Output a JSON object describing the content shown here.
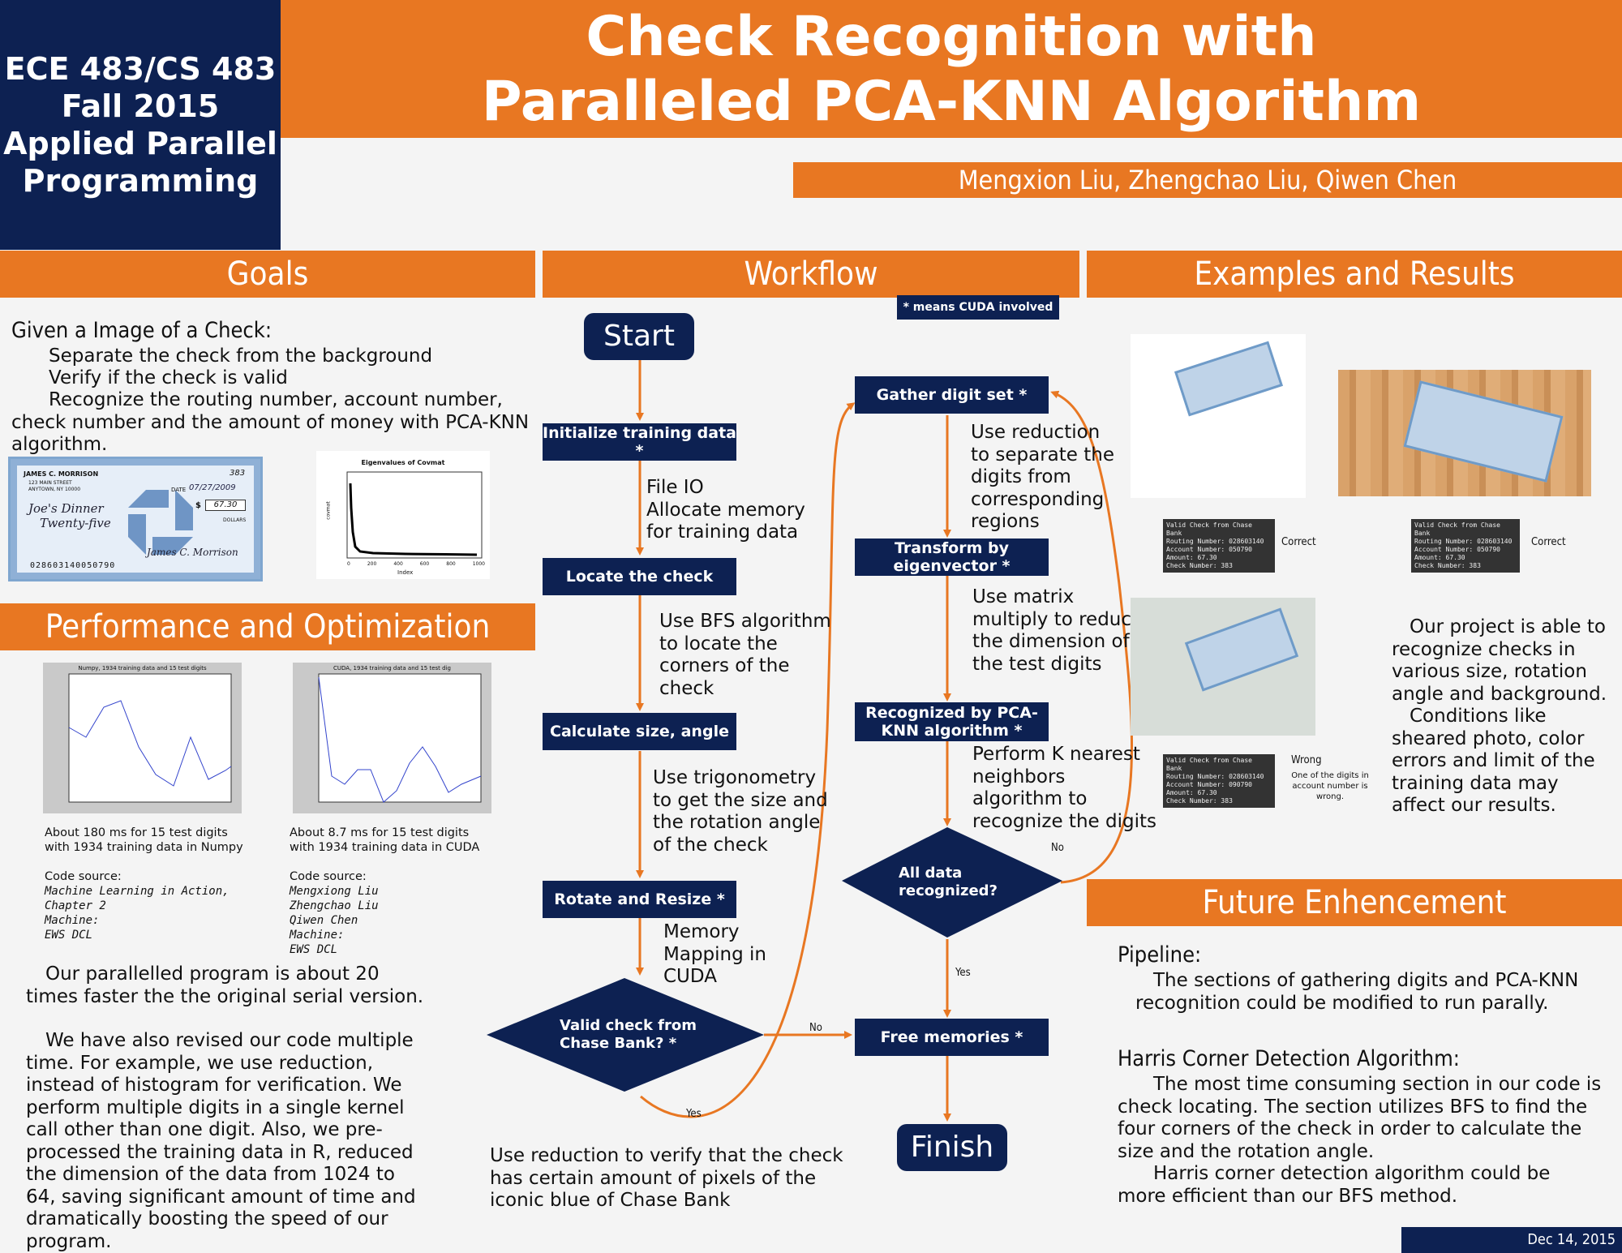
{
  "header": {
    "course": [
      "ECE 483/CS 483",
      "Fall 2015",
      "Applied Parallel",
      "Programming"
    ],
    "title_line1": "Check Recognition with",
    "title_line2": "Paralleled PCA-KNN Algorithm",
    "authors": "Mengxion Liu, Zhengchao Liu, Qiwen Chen"
  },
  "goals": {
    "heading": "Goals",
    "intro": "Given a Image of a Check:",
    "items": [
      "Separate the check from the background",
      "Verify if the check is valid",
      "Recognize the routing number, account number, check number and the amount of money with PCA-KNN algorithm."
    ],
    "check": {
      "name": "JAMES C. MORRISON",
      "address1": "123 MAIN STREET",
      "address2": "ANYTOWN, NY 10000",
      "number": "383",
      "date_label": "DATE",
      "date": "07/27/2009",
      "payee": "Joe's Dinner",
      "amount_words": "Twenty-five",
      "amount": "67.30",
      "dollars": "DOLLARS",
      "signature": "James C. Morrison",
      "micr": "028603140050790"
    },
    "eigen_plot": {
      "title": "Eigenvalues of Covmat",
      "ylabel": "covmat",
      "xlabel": "Index",
      "xticks": [
        "0",
        "200",
        "400",
        "600",
        "800",
        "1000"
      ]
    }
  },
  "performance": {
    "heading": "Performance and Optimization",
    "numpy_plot_title": "Numpy, 1934 training data and 15 test digits",
    "cuda_plot_title": "CUDA, 1934 training data and 15 test dig",
    "numpy_caption": "About 180 ms for 15 test digits with 1934 training data in Numpy",
    "cuda_caption": "About 8.7 ms for 15 test digits with 1934 training data in CUDA",
    "code_source_label": "Code source:",
    "numpy_source": [
      "Machine Learning in Action,",
      "Chapter 2",
      "Machine:",
      "EWS DCL"
    ],
    "cuda_source": [
      "Mengxiong Liu",
      "Zhengchao Liu",
      "Qiwen Chen",
      "Machine:",
      "EWS DCL"
    ],
    "para1": "Our parallelled program is about 20 times faster the the original serial version.",
    "para2": "We have also revised our code multiple time. For example, we use reduction, instead of histogram for verification. We perform multiple digits in a single kernel call other than one digit. Also, we pre-processed the training data in R, reduced the dimension of the data from 1024 to 64, saving significant amount of time and dramatically boosting the speed of our program."
  },
  "workflow": {
    "heading": "Workflow",
    "cuda_note": "* means CUDA involved",
    "start": "Start",
    "finish": "Finish",
    "steps": {
      "init": "Initialize training data *",
      "locate": "Locate the check",
      "calc": "Calculate size, angle",
      "rotate": "Rotate and Resize *",
      "valid": "Valid check from Chase Bank? *",
      "gather": "Gather digit set *",
      "transform": "Transform by eigenvector *",
      "recognized": "Recognized by PCA-KNN algorithm *",
      "alldata": "All data recognized?",
      "free": "Free memories *"
    },
    "notes": {
      "init": "File IO\nAllocate memory\nfor training data",
      "locate": "Use BFS algorithm\nto locate the\ncorners of the\ncheck",
      "calc": "Use trigonometry\nto get the size and\nthe rotation angle\nof the check",
      "rotate": "Memory\nMapping in\nCUDA",
      "gather": "Use reduction\nto separate the\ndigits from\ncorresponding\nregions",
      "transform": "Use matrix\nmultiply to reduce\nthe dimension of\nthe test digits",
      "recognized": "Perform K nearest\nneighbors\nalgorithm to\nrecognize the digits",
      "valid": "Use reduction to verify that the check\nhas certain amount of pixels of the\niconic blue of Chase Bank"
    },
    "labels": {
      "no": "No",
      "yes": "Yes"
    }
  },
  "examples": {
    "heading": "Examples and Results",
    "console_lines_ok": [
      "Valid Check from Chase Bank",
      "Routing Number: 028603140",
      "Account Number: 050790",
      "Amount: 67.30",
      "Check Number: 383"
    ],
    "console_lines_wrong": [
      "Valid Check from Chase Bank",
      "Routing Number: 028603140",
      "Account Number: 090790",
      "Amount: 67.30",
      "Check Number: 383"
    ],
    "correct": "Correct",
    "wrong": "Wrong",
    "wrong_note": "One of the digits in account number is wrong.",
    "summary1": "Our project is able to recognize checks in various size, rotation angle and background.",
    "summary2": "Conditions like sheared photo, color errors and limit of the training data may affect our results."
  },
  "future": {
    "heading": "Future Enhencement",
    "pipeline_title": "Pipeline:",
    "pipeline_text": "The sections of gathering digits and PCA-KNN recognition could be modified to run parally.",
    "harris_title": "Harris Corner Detection Algorithm:",
    "harris_text1": "The most time consuming section in our code is check locating. The section utilizes BFS to find the four corners of the check in order to calculate the size and the rotation angle.",
    "harris_text2": "Harris corner detection algorithm could be more efficient than our BFS method."
  },
  "footer": {
    "date": "Dec 14, 2015"
  },
  "colors": {
    "navy": "#0d2152",
    "orange": "#e87722"
  }
}
